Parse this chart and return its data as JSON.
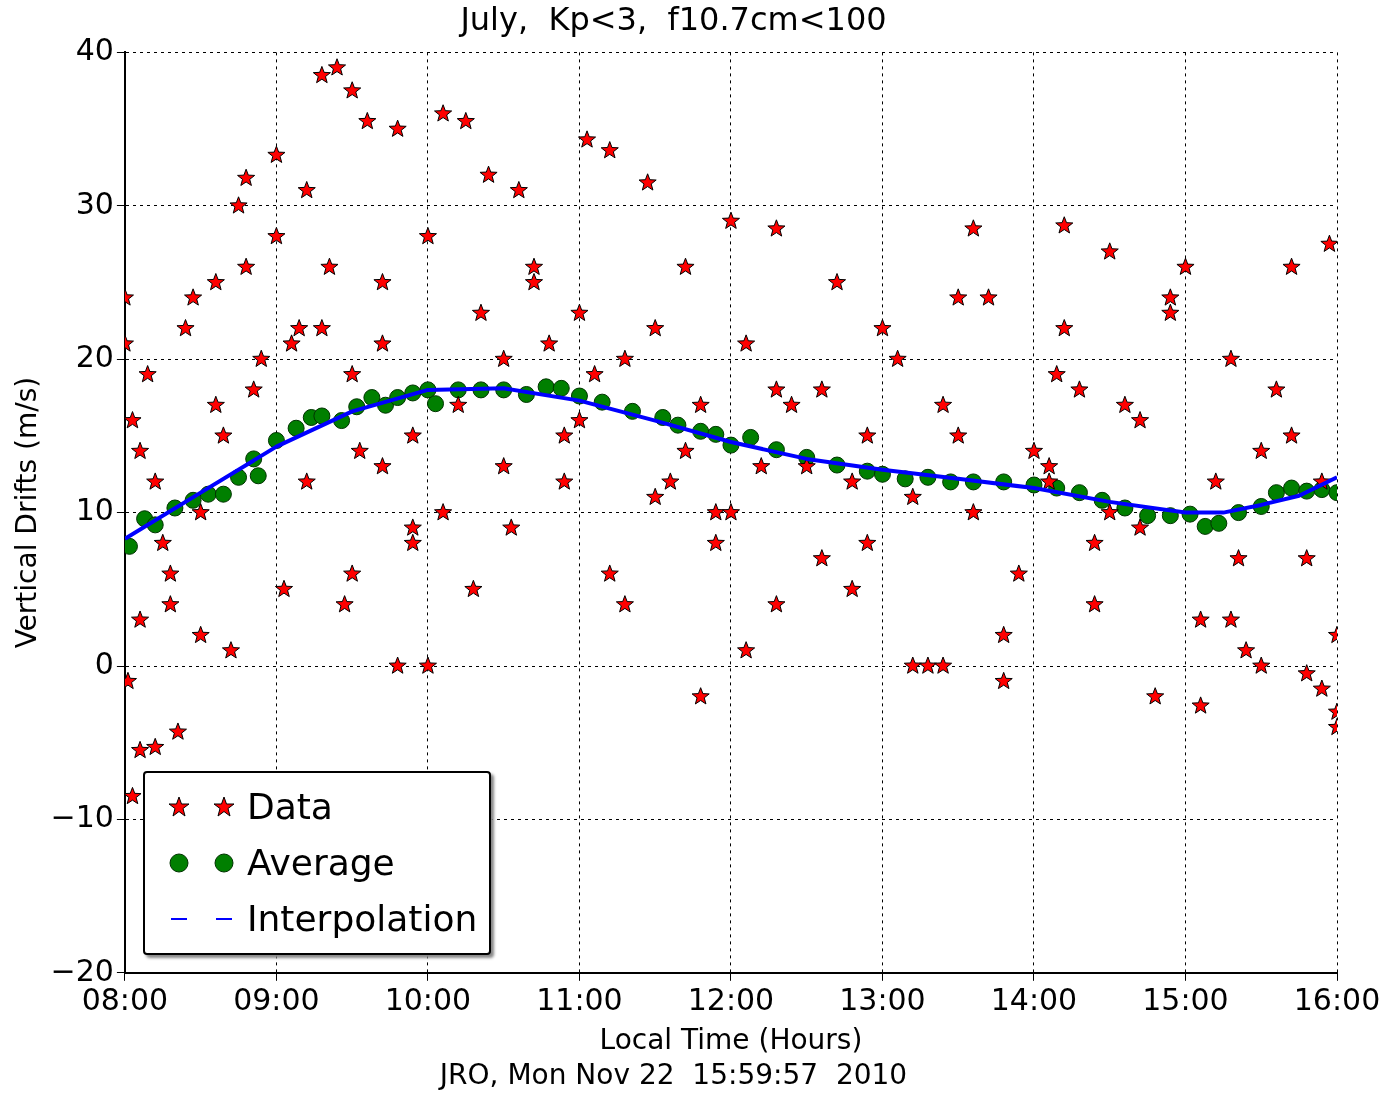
{
  "chart_data": {
    "type": "scatter",
    "title": "July,  Kp<3,  f10.7cm<100",
    "xlabel": "Local Time (Hours)",
    "ylabel": "Vertical Drifts (m/s)",
    "annotations": [
      "JRO, Mon Nov 22  15:59:57  2010"
    ],
    "xlim": [
      8,
      16
    ],
    "xticks": [
      {
        "value": 8,
        "label": "08:00"
      },
      {
        "value": 9,
        "label": "09:00"
      },
      {
        "value": 10,
        "label": "10:00"
      },
      {
        "value": 11,
        "label": "11:00"
      },
      {
        "value": 12,
        "label": "12:00"
      },
      {
        "value": 13,
        "label": "13:00"
      },
      {
        "value": 14,
        "label": "14:00"
      },
      {
        "value": 15,
        "label": "15:00"
      },
      {
        "value": 16,
        "label": "16:00"
      }
    ],
    "ylim": [
      -20,
      40
    ],
    "yticks": [
      {
        "value": -20,
        "label": "−20"
      },
      {
        "value": -10,
        "label": "−10"
      },
      0,
      10,
      20,
      30,
      40
    ],
    "grid": true,
    "legend": "bottom left",
    "series": [
      {
        "name": "Data",
        "marker": "star",
        "color": "#ff0000",
        "x": [
          8.0,
          8.0,
          8.02,
          8.05,
          8.05,
          8.1,
          8.2,
          8.35,
          8.1,
          8.15,
          8.2,
          8.3,
          8.4,
          8.5,
          8.6,
          8.1,
          8.25,
          8.45,
          8.6,
          8.7,
          8.8,
          8.9,
          8.3,
          8.5,
          8.65,
          8.75,
          8.85,
          9.0,
          9.1,
          9.2,
          9.3,
          9.4,
          9.5,
          9.6,
          9.0,
          8.8,
          9.05,
          9.15,
          9.35,
          9.45,
          9.55,
          9.7,
          9.8,
          9.9,
          10.0,
          10.1,
          10.25,
          10.4,
          10.5,
          9.2,
          9.3,
          9.5,
          9.7,
          9.8,
          9.9,
          10.0,
          10.2,
          10.35,
          10.5,
          10.6,
          10.7,
          10.8,
          10.9,
          11.0,
          11.05,
          11.2,
          11.3,
          11.45,
          11.6,
          11.7,
          11.8,
          11.9,
          12.0,
          12.1,
          12.2,
          12.3,
          9.5,
          9.7,
          9.9,
          10.1,
          10.3,
          10.55,
          10.7,
          10.9,
          11.1,
          11.3,
          11.5,
          11.7,
          11.9,
          12.1,
          12.3,
          12.5,
          12.7,
          12.9,
          13.1,
          13.3,
          13.5,
          13.7,
          13.9,
          14.1,
          14.3,
          14.5,
          14.7,
          14.9,
          15.1,
          15.3,
          15.5,
          15.7,
          15.9,
          16.0,
          12.4,
          12.6,
          12.8,
          13.0,
          13.2,
          13.4,
          13.6,
          13.8,
          14.0,
          14.2,
          14.4,
          14.6,
          14.8,
          15.0,
          15.2,
          15.4,
          15.6,
          15.8,
          16.0,
          11.0,
          11.2,
          11.5,
          11.8,
          12.0,
          12.3,
          12.6,
          12.9,
          13.2,
          13.5,
          13.8,
          14.1,
          14.15,
          14.4,
          14.7,
          15.1,
          15.3,
          15.5,
          15.8,
          16.0,
          15.35,
          15.7,
          15.9,
          14.5,
          14.2,
          13.6,
          15.95,
          14.9,
          13.4,
          12.8
        ],
        "values": [
          24,
          21,
          -1,
          -8.5,
          16,
          -5.5,
          -5.3,
          -4.3,
          3,
          19,
          12,
          6,
          22,
          2,
          17,
          14,
          8,
          24,
          25,
          1,
          26,
          20,
          4,
          10,
          15,
          30,
          18,
          28,
          21,
          31,
          38.5,
          39,
          37.5,
          35.5,
          33.3,
          31.8,
          5,
          22,
          26,
          4,
          14,
          25,
          0,
          9,
          28,
          36,
          35.5,
          32,
          20,
          12,
          22,
          19,
          13,
          35,
          8,
          0,
          17,
          23,
          13,
          31,
          26,
          21,
          15,
          23,
          34.3,
          33.6,
          20,
          31.5,
          12,
          26,
          17,
          8,
          29,
          21,
          13,
          28.5,
          6,
          21,
          15,
          10,
          5,
          9,
          25,
          12,
          19,
          4,
          22,
          14,
          10,
          1,
          18,
          13,
          25,
          8,
          20,
          0,
          15,
          24,
          6,
          12,
          18,
          27,
          9,
          23,
          3,
          20,
          0,
          26,
          12,
          2,
          17,
          7,
          5,
          22,
          0,
          17,
          10,
          -1,
          14,
          22,
          4,
          17,
          -2,
          26,
          12,
          1,
          18,
          7,
          -3,
          16,
          6,
          11,
          -2,
          10,
          4,
          18,
          15,
          11,
          24,
          2,
          13,
          19,
          8,
          16,
          -2.6,
          3,
          14,
          -0.5,
          -4,
          7,
          15,
          -1.5,
          10,
          28.7,
          28.5,
          27.5,
          24,
          0,
          12
        ]
      },
      {
        "name": "Average",
        "marker": "circle",
        "color": "#007f00",
        "x": [
          8.03,
          8.13,
          8.2,
          8.33,
          8.45,
          8.55,
          8.65,
          8.75,
          8.85,
          8.88,
          9.0,
          9.13,
          9.23,
          9.3,
          9.43,
          9.53,
          9.63,
          9.72,
          9.8,
          9.9,
          10.0,
          10.05,
          10.2,
          10.35,
          10.5,
          10.65,
          10.78,
          10.88,
          11.0,
          11.15,
          11.35,
          11.55,
          11.65,
          11.8,
          11.9,
          12.0,
          12.13,
          12.3,
          12.5,
          12.7,
          12.9,
          13.0,
          13.15,
          13.3,
          13.45,
          13.6,
          13.8,
          14.0,
          14.15,
          14.3,
          14.45,
          14.6,
          14.75,
          14.9,
          15.03,
          15.13,
          15.22,
          15.35,
          15.5,
          15.6,
          15.7,
          15.8,
          15.9,
          16.0
        ],
        "values": [
          7.8,
          9.6,
          9.2,
          10.3,
          10.8,
          11.2,
          11.2,
          12.3,
          13.5,
          12.4,
          14.7,
          15.5,
          16.2,
          16.3,
          16.0,
          16.9,
          17.5,
          17.0,
          17.5,
          17.8,
          18.0,
          17.1,
          18.0,
          18.0,
          18.0,
          17.7,
          18.2,
          18.1,
          17.6,
          17.2,
          16.6,
          16.2,
          15.7,
          15.3,
          15.1,
          14.4,
          14.9,
          14.1,
          13.6,
          13.1,
          12.7,
          12.5,
          12.2,
          12.3,
          12.0,
          12.0,
          12.0,
          11.8,
          11.6,
          11.3,
          10.8,
          10.3,
          9.8,
          9.8,
          9.9,
          9.1,
          9.3,
          10.0,
          10.4,
          11.3,
          11.6,
          11.4,
          11.5,
          11.3
        ]
      },
      {
        "name": "Interpolation",
        "type": "line",
        "marker": "none",
        "line_style": "solid",
        "color": "#0000ff",
        "x": [
          8.0,
          8.5,
          9.0,
          9.5,
          10.0,
          10.5,
          11.0,
          11.5,
          12.0,
          12.5,
          13.0,
          13.5,
          14.0,
          14.5,
          15.0,
          15.25,
          15.5,
          15.75,
          16.0
        ],
        "values": [
          8.3,
          11.3,
          14.3,
          16.6,
          18.0,
          18.1,
          17.3,
          16.0,
          14.6,
          13.5,
          12.8,
          12.2,
          11.6,
          10.7,
          10.0,
          10.0,
          10.5,
          11.1,
          12.3
        ]
      }
    ]
  }
}
